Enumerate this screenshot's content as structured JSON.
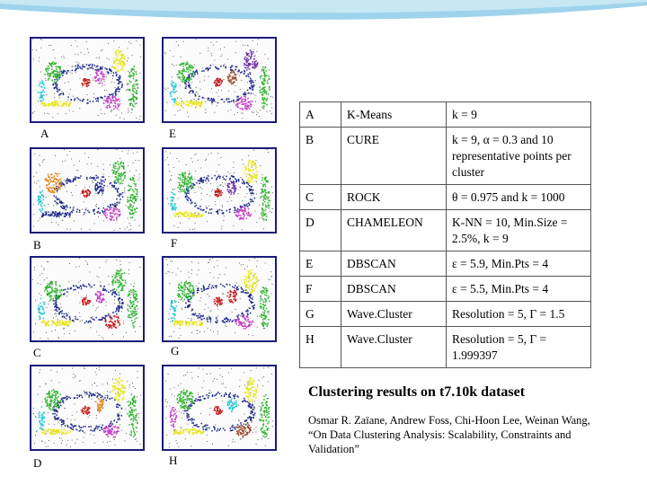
{
  "panels": [
    {
      "label": "A"
    },
    {
      "label": "E"
    },
    {
      "label": "B"
    },
    {
      "label": "F"
    },
    {
      "label": "C"
    },
    {
      "label": "G"
    },
    {
      "label": "D"
    },
    {
      "label": "H"
    }
  ],
  "table": {
    "rows": [
      {
        "id": "A",
        "method": "K-Means",
        "params": "k = 9"
      },
      {
        "id": "B",
        "method": "CURE",
        "params": "k = 9, α = 0.3 and 10 representative points per cluster"
      },
      {
        "id": "C",
        "method": "ROCK",
        "params": "θ = 0.975 and k = 1000"
      },
      {
        "id": "D",
        "method": "CHAMELEON",
        "params": "K-NN = 10, Min.Size = 2.5%, k = 9"
      },
      {
        "id": "E",
        "method": "DBSCAN",
        "params": "ε = 5.9, Min.Pts = 4"
      },
      {
        "id": "F",
        "method": "DBSCAN",
        "params": "ε = 5.5, Min.Pts = 4"
      },
      {
        "id": "G",
        "method": "Wave.Cluster",
        "params": "Resolution = 5, Γ = 1.5"
      },
      {
        "id": "H",
        "method": "Wave.Cluster",
        "params": "Resolution = 5, Γ = 1.999397"
      }
    ]
  },
  "caption": "Clustering results on t7.10k dataset",
  "citation": "Osmar R. Zaïane, Andrew Foss, Chi-Hoon Lee, Weinan Wang, “On Data Clustering Analysis: Scalability, Constraints and Validation”",
  "colors": {
    "panel_border": "#1c1c7a",
    "cluster_green": "#2fb52f",
    "cluster_blue": "#1e2a8c",
    "cluster_red": "#c81e1e",
    "cluster_yellow": "#e6e61e",
    "cluster_magenta": "#c83cc8",
    "cluster_cyan": "#22c8d8",
    "cluster_orange": "#e08a1e",
    "cluster_purple": "#6a2aa8",
    "cluster_brown": "#9a4a2a"
  }
}
